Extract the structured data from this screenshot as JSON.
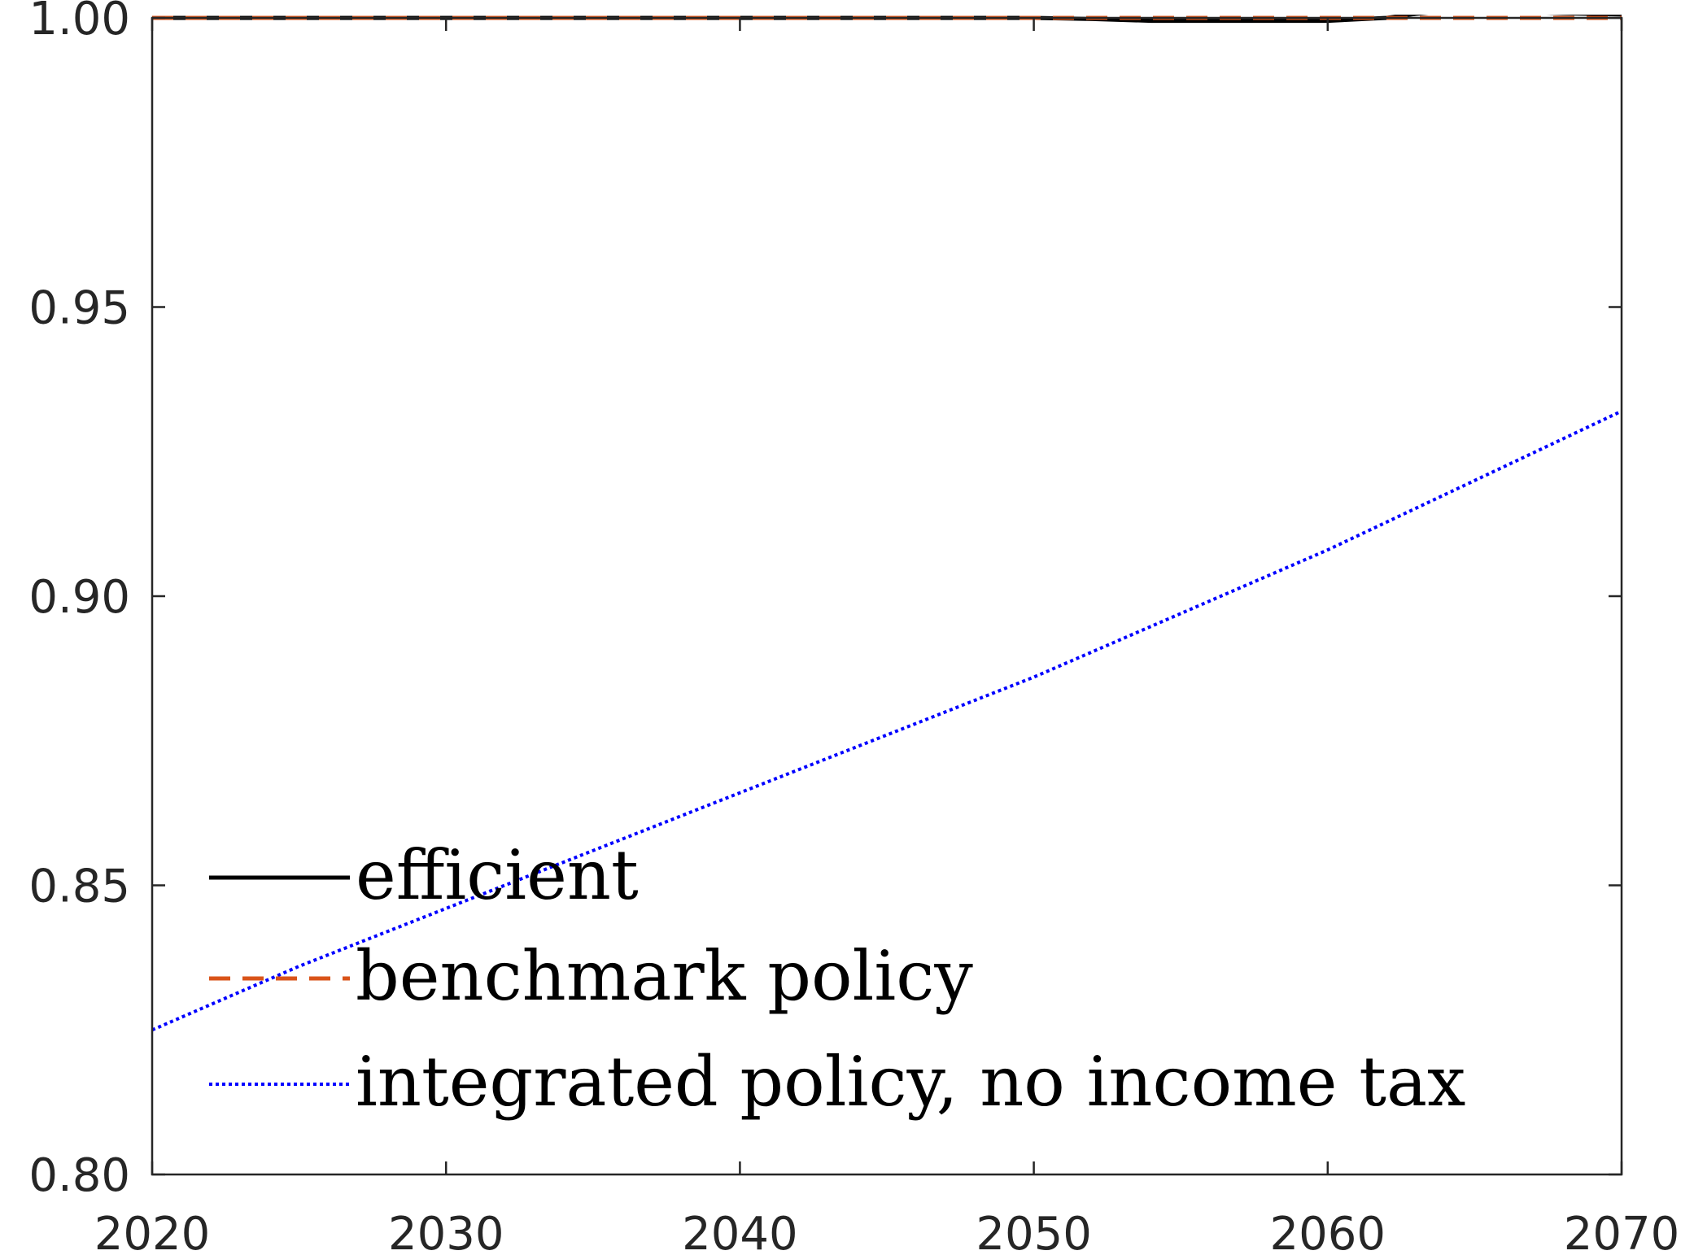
{
  "chart_data": {
    "type": "line",
    "title": "",
    "xlabel": "",
    "ylabel": "",
    "xlim": [
      2020,
      2070
    ],
    "ylim": [
      0.8,
      1.0
    ],
    "xticks": [
      "2020",
      "2030",
      "2040",
      "2050",
      "2060",
      "2070"
    ],
    "yticks": [
      "0.80",
      "0.85",
      "0.90",
      "0.95",
      "1.00"
    ],
    "grid": false,
    "legend_position": "bottom-left",
    "series": [
      {
        "name": "efficient",
        "color": "#000000",
        "style": "solid",
        "x": [
          2020,
          2025,
          2030,
          2035,
          2040,
          2045,
          2050,
          2052,
          2054,
          2056,
          2058,
          2060,
          2062,
          2063,
          2064,
          2065,
          2066,
          2068,
          2070
        ],
        "y": [
          1.0,
          1.0,
          1.0,
          1.0,
          1.0,
          1.0,
          1.0,
          0.9998,
          0.9995,
          0.9995,
          0.9995,
          0.9995,
          1.0,
          1.0007,
          1.0012,
          1.0014,
          1.0012,
          1.0008,
          1.0006
        ]
      },
      {
        "name": "benchmark policy",
        "color": "#D95319",
        "style": "dashed",
        "x": [
          2020,
          2030,
          2040,
          2050,
          2060,
          2070
        ],
        "y": [
          1.0,
          1.0,
          1.0,
          1.0,
          1.0,
          1.0
        ]
      },
      {
        "name": "integrated policy, no income tax",
        "color": "#0000FF",
        "style": "dotted",
        "x": [
          2020,
          2025,
          2030,
          2035,
          2040,
          2045,
          2050,
          2055,
          2060,
          2065,
          2070
        ],
        "y": [
          0.825,
          0.836,
          0.846,
          0.856,
          0.866,
          0.876,
          0.886,
          0.897,
          0.908,
          0.92,
          0.932
        ]
      }
    ]
  }
}
